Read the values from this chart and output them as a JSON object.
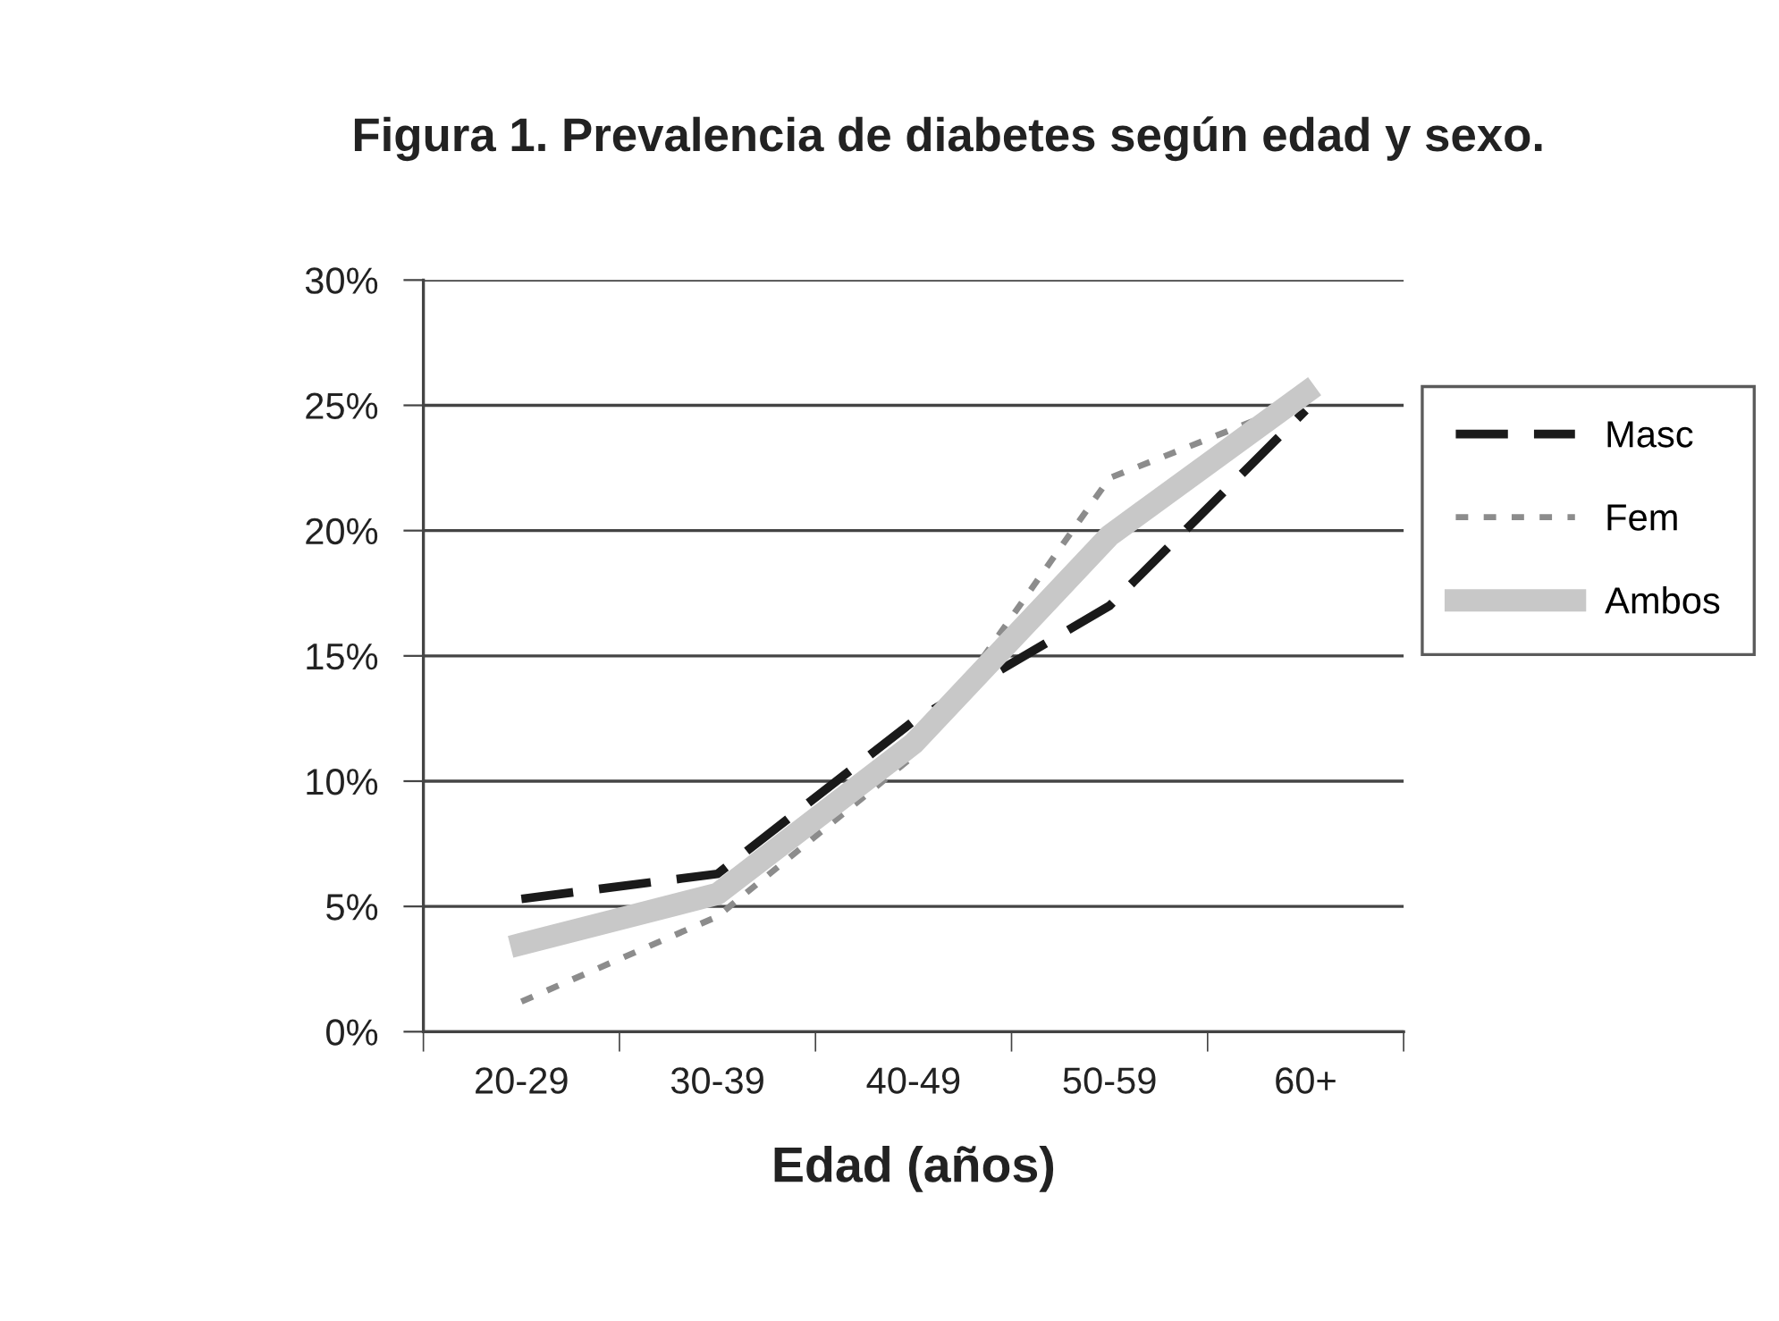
{
  "chart_data": {
    "type": "line",
    "title": "Figura 1. Prevalencia de diabetes según edad y sexo.",
    "xlabel": "Edad (años)",
    "categories": [
      "20-29",
      "30-39",
      "40-49",
      "50-59",
      "60+"
    ],
    "series": [
      {
        "name": "Masc",
        "color": "#1a1a1a",
        "line_style": "dashed",
        "values": [
          5.3,
          6.3,
          12.4,
          17.0,
          24.8
        ]
      },
      {
        "name": "Fem",
        "color": "#8c8c8c",
        "line_style": "dotted",
        "values": [
          1.2,
          4.6,
          11.0,
          22.1,
          25.2
        ]
      },
      {
        "name": "Ambos",
        "color": "#c8c8c8",
        "line_style": "solid",
        "values": [
          3.5,
          5.5,
          11.5,
          19.8,
          25.5
        ]
      }
    ],
    "ylim": [
      0,
      30
    ],
    "yticks": [
      {
        "value": 0,
        "label": "0%"
      },
      {
        "value": 5,
        "label": "5%"
      },
      {
        "value": 10,
        "label": "10%"
      },
      {
        "value": 15,
        "label": "15%"
      },
      {
        "value": 20,
        "label": "20%"
      },
      {
        "value": 25,
        "label": "25%"
      },
      {
        "value": 30,
        "label": "30%"
      }
    ],
    "grid": "y",
    "legend": "right",
    "marker": "none"
  }
}
